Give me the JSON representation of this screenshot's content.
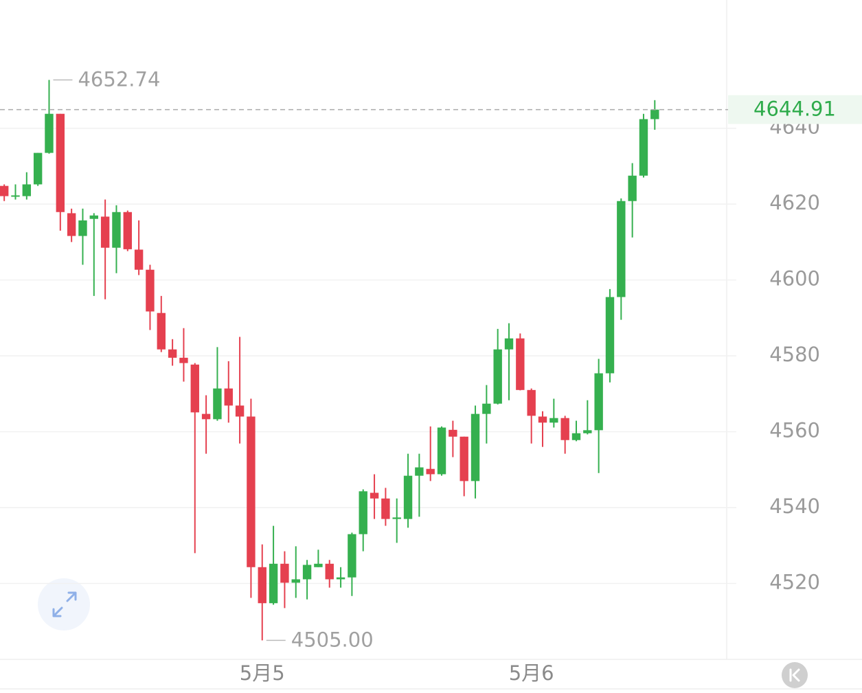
{
  "chart_data": {
    "type": "candlestick",
    "categories": [
      null,
      null,
      null,
      null,
      null,
      null,
      null,
      null,
      null,
      null,
      null,
      null,
      null,
      null,
      null,
      null,
      null,
      null,
      null,
      null,
      null,
      null,
      null,
      "5月5",
      null,
      null,
      null,
      null,
      null,
      null,
      null,
      null,
      null,
      null,
      null,
      null,
      null,
      null,
      null,
      null,
      null,
      null,
      null,
      null,
      null,
      null,
      null,
      "5月6",
      null,
      null,
      null,
      null,
      null,
      null,
      null,
      null,
      null,
      null,
      null
    ],
    "open": [
      4624.8,
      4622.1,
      4622.1,
      4625.2,
      4633.5,
      4643.8,
      4617.6,
      4611.6,
      4616.1,
      4616.7,
      4608.5,
      4617.9,
      4608.0,
      4602.7,
      4591.3,
      4581.7,
      4579.5,
      4577.7,
      4564.7,
      4563.3,
      4571.4,
      4566.9,
      4564.0,
      4524.3,
      4514.8,
      4525.2,
      4520.2,
      4521.1,
      4524.3,
      4525.2,
      4521.1,
      4521.6,
      4533.0,
      4543.9,
      4542.4,
      4537.0,
      4537.0,
      4548.4,
      4550.2,
      4548.8,
      4560.5,
      4558.7,
      4547.0,
      4564.7,
      4567.4,
      4581.7,
      4584.6,
      4571.0,
      4564.0,
      4562.4,
      4563.6,
      4557.8,
      4559.6,
      4560.4,
      4575.4,
      4595.5,
      4620.8,
      4627.5,
      4642.4
    ],
    "high": [
      4625.2,
      4625.2,
      4628.4,
      4633.5,
      4652.74,
      4643.8,
      4618.8,
      4618.8,
      4617.6,
      4621.2,
      4619.7,
      4618.3,
      4615.7,
      4604.0,
      4595.8,
      4584.4,
      4587.3,
      4578.1,
      4569.6,
      4582.3,
      4578.6,
      4585.0,
      4568.7,
      4530.3,
      4535.2,
      4528.5,
      4529.8,
      4526.2,
      4528.9,
      4526.2,
      4524.3,
      4533.4,
      4544.8,
      4548.8,
      4545.2,
      4542.4,
      4554.2,
      4554.2,
      4561.4,
      4561.4,
      4562.9,
      4558.7,
      4566.9,
      4572.3,
      4587.1,
      4588.6,
      4585.9,
      4571.4,
      4565.4,
      4568.7,
      4564.2,
      4562.9,
      4568.3,
      4579.2,
      4597.6,
      4621.5,
      4630.8,
      4643.8,
      4647.4
    ],
    "low": [
      4620.8,
      4621.2,
      4621.2,
      4624.8,
      4633.3,
      4613.0,
      4610.0,
      4604.0,
      4595.8,
      4594.9,
      4601.8,
      4607.6,
      4601.3,
      4586.8,
      4581.0,
      4577.4,
      4573.2,
      4528.0,
      4554.2,
      4562.9,
      4562.4,
      4556.9,
      4516.2,
      4505.0,
      4514.4,
      4513.5,
      4516.2,
      4515.8,
      4524.3,
      4518.9,
      4518.9,
      4516.7,
      4528.5,
      4537.0,
      4535.2,
      4530.7,
      4534.7,
      4537.6,
      4547.0,
      4548.4,
      4553.3,
      4543.0,
      4542.4,
      4556.9,
      4567.2,
      4568.3,
      4570.9,
      4556.9,
      4556.0,
      4561.1,
      4554.2,
      4557.5,
      4559.3,
      4549.1,
      4573.0,
      4589.5,
      4611.2,
      4627.0,
      4639.6
    ],
    "close": [
      4622.1,
      4622.3,
      4625.2,
      4633.5,
      4643.8,
      4617.9,
      4611.6,
      4615.7,
      4617.0,
      4608.5,
      4617.9,
      4608.1,
      4602.7,
      4591.7,
      4581.7,
      4579.5,
      4578.1,
      4565.1,
      4563.3,
      4571.4,
      4566.9,
      4564.0,
      4524.3,
      4514.8,
      4525.2,
      4520.2,
      4521.1,
      4524.9,
      4525.2,
      4521.1,
      4521.6,
      4533.0,
      4544.3,
      4542.4,
      4537.0,
      4537.4,
      4548.4,
      4550.6,
      4548.8,
      4561.1,
      4558.7,
      4547.0,
      4564.7,
      4567.4,
      4581.7,
      4584.6,
      4571.0,
      4564.2,
      4562.4,
      4563.6,
      4557.8,
      4559.6,
      4560.4,
      4575.4,
      4595.5,
      4620.8,
      4627.5,
      4642.4,
      4644.91
    ],
    "up_color": "#35b04f",
    "down_color": "#e5404f",
    "ylim": [
      4500,
      4673.8
    ],
    "yticks": [
      4520,
      4540,
      4560,
      4580,
      4600,
      4620,
      4640
    ],
    "grid": true,
    "high_label": {
      "value": 4652.74,
      "label": "4652.74"
    },
    "low_label": {
      "value": 4505,
      "label": "4505.00"
    },
    "last_price": {
      "value": 4644.91,
      "label": "4644.91",
      "color": "#2eab4b"
    }
  }
}
